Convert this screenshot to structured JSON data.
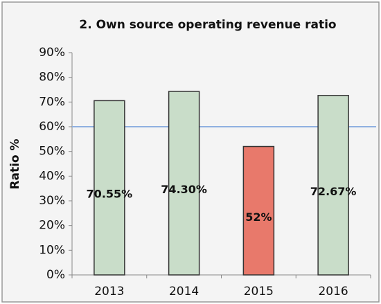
{
  "chart_data": {
    "type": "bar",
    "title": "2. Own source operating revenue ratio",
    "y_label": "Ratio %",
    "categories": [
      "2013",
      "2014",
      "2015",
      "2016"
    ],
    "values": [
      70.55,
      74.3,
      52,
      72.67
    ],
    "value_labels": [
      "70.55%",
      "74.30%",
      "52%",
      "72.67%"
    ],
    "colors": [
      "#c9ddc9",
      "#c9ddc9",
      "#e8796b",
      "#c9ddc9"
    ],
    "reference_line": 60,
    "reference_color": "#8fb0e0",
    "ylim": [
      0,
      90
    ],
    "yticks": [
      {
        "value": 0,
        "label": "0%"
      },
      {
        "value": 10,
        "label": "10%"
      },
      {
        "value": 20,
        "label": "20%"
      },
      {
        "value": 30,
        "label": "30%"
      },
      {
        "value": 40,
        "label": "40%"
      },
      {
        "value": 50,
        "label": "50%"
      },
      {
        "value": 60,
        "label": "60%"
      },
      {
        "value": 70,
        "label": "70%"
      },
      {
        "value": 80,
        "label": "80%"
      },
      {
        "value": 90,
        "label": "90%"
      }
    ],
    "grid": false
  }
}
